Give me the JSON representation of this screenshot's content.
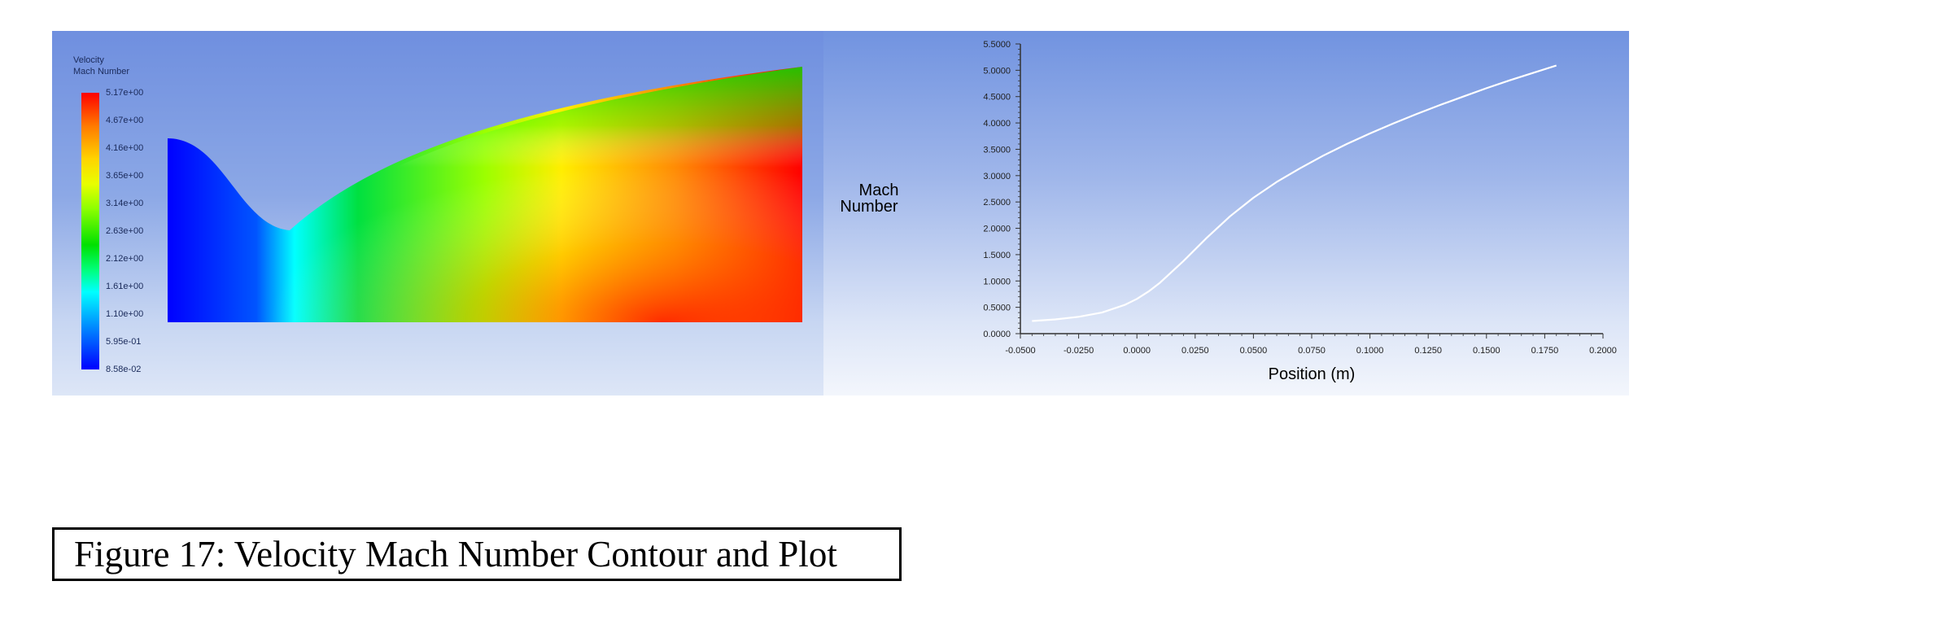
{
  "chart_data": [
    {
      "type": "heatmap",
      "legend_title_line1": "Velocity",
      "legend_title_line2": "Mach Number",
      "colorbar_labels": [
        "5.17e+00",
        "4.67e+00",
        "4.16e+00",
        "3.65e+00",
        "3.14e+00",
        "2.63e+00",
        "2.12e+00",
        "1.61e+00",
        "1.10e+00",
        "5.95e-01",
        "8.58e-02"
      ],
      "colorbar_range": [
        0.0858,
        5.17
      ],
      "colors": [
        "#0000ff",
        "#00ffff",
        "#00e000",
        "#e8ff00",
        "#ffd400",
        "#ff0000"
      ]
    },
    {
      "type": "line",
      "ylabel_line1": "Mach",
      "ylabel_line2": "Number",
      "xlabel": "Position (m)",
      "x_ticks": [
        "-0.0500",
        "-0.0250",
        "0.0000",
        "0.0250",
        "0.0500",
        "0.0750",
        "0.1000",
        "0.1250",
        "0.1500",
        "0.1750",
        "0.2000"
      ],
      "y_ticks": [
        "0.0000",
        "0.5000",
        "1.0000",
        "1.5000",
        "2.0000",
        "2.5000",
        "3.0000",
        "3.5000",
        "4.0000",
        "4.5000",
        "5.0000",
        "5.5000"
      ],
      "xlim": [
        -0.05,
        0.2
      ],
      "ylim": [
        0,
        5.5
      ],
      "series": [
        {
          "x": [
            -0.045,
            -0.035,
            -0.025,
            -0.015,
            -0.005,
            0.0,
            0.005,
            0.01,
            0.02,
            0.03,
            0.04,
            0.05,
            0.06,
            0.07,
            0.08,
            0.09,
            0.1,
            0.11,
            0.12,
            0.13,
            0.14,
            0.15,
            0.16,
            0.17,
            0.18
          ],
          "y": [
            0.24,
            0.27,
            0.32,
            0.4,
            0.55,
            0.66,
            0.8,
            0.97,
            1.38,
            1.82,
            2.23,
            2.58,
            2.88,
            3.14,
            3.38,
            3.6,
            3.8,
            3.99,
            4.17,
            4.34,
            4.5,
            4.66,
            4.81,
            4.95,
            5.09
          ]
        }
      ],
      "line_color": "#ffffff"
    }
  ],
  "caption": "Figure 17: Velocity Mach Number Contour and Plot"
}
